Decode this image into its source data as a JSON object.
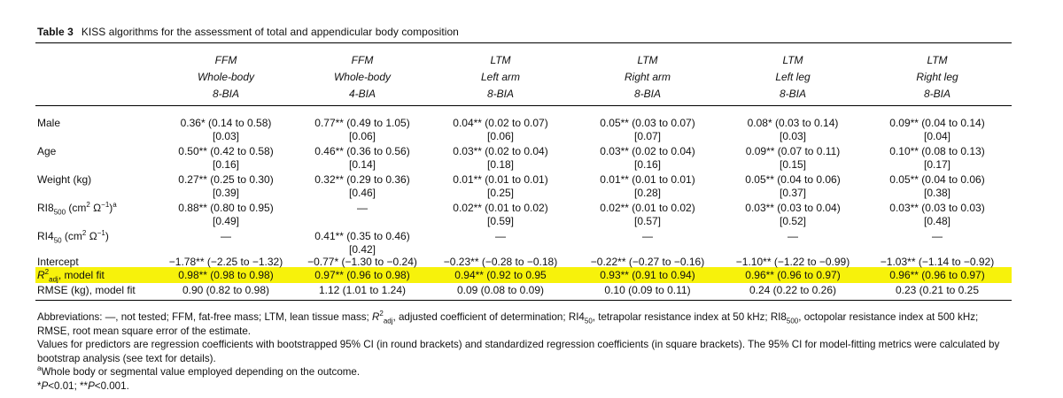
{
  "caption": {
    "number": "Table 3",
    "title": "KISS algorithms for the assessment of total and appendicular body composition"
  },
  "columns": [
    {
      "outcome": "FFM",
      "segment": "Whole-body",
      "method": "8-BIA"
    },
    {
      "outcome": "FFM",
      "segment": "Whole-body",
      "method": "4-BIA"
    },
    {
      "outcome": "LTM",
      "segment": "Left arm",
      "method": "8-BIA"
    },
    {
      "outcome": "LTM",
      "segment": "Right arm",
      "method": "8-BIA"
    },
    {
      "outcome": "LTM",
      "segment": "Left leg",
      "method": "8-BIA"
    },
    {
      "outcome": "LTM",
      "segment": "Right leg",
      "method": "8-BIA"
    }
  ],
  "rows": {
    "male": {
      "label": "Male",
      "cells": [
        {
          "coef": "0.36* (0.14 to 0.58)",
          "std": "[0.03]"
        },
        {
          "coef": "0.77** (0.49 to 1.05)",
          "std": "[0.06]"
        },
        {
          "coef": "0.04** (0.02 to 0.07)",
          "std": "[0.06]"
        },
        {
          "coef": "0.05** (0.03 to 0.07)",
          "std": "[0.07]"
        },
        {
          "coef": "0.08* (0.03 to 0.14)",
          "std": "[0.03]"
        },
        {
          "coef": "0.09** (0.04 to 0.14)",
          "std": "[0.04]"
        }
      ]
    },
    "age": {
      "label": "Age",
      "cells": [
        {
          "coef": "0.50** (0.42 to 0.58)",
          "std": "[0.16]"
        },
        {
          "coef": "0.46** (0.36 to 0.56)",
          "std": "[0.14]"
        },
        {
          "coef": "0.03** (0.02 to 0.04)",
          "std": "[0.18]"
        },
        {
          "coef": "0.03** (0.02 to 0.04)",
          "std": "[0.16]"
        },
        {
          "coef": "0.09** (0.07 to 0.11)",
          "std": "[0.15]"
        },
        {
          "coef": "0.10** (0.08 to 0.13)",
          "std": "[0.17]"
        }
      ]
    },
    "weight": {
      "label": "Weight (kg)",
      "cells": [
        {
          "coef": "0.27** (0.25 to 0.30)",
          "std": "[0.39]"
        },
        {
          "coef": "0.32** (0.29 to 0.36)",
          "std": "[0.46]"
        },
        {
          "coef": "0.01** (0.01 to 0.01)",
          "std": "[0.25]"
        },
        {
          "coef": "0.01** (0.01 to 0.01)",
          "std": "[0.28]"
        },
        {
          "coef": "0.05** (0.04 to 0.06)",
          "std": "[0.37]"
        },
        {
          "coef": "0.05** (0.04 to 0.06)",
          "std": "[0.38]"
        }
      ]
    },
    "ri8": {
      "label_main": "RI8",
      "label_sub": "500",
      "label_unit": " (cm",
      "label_sup1": "2",
      "label_mid": " Ω",
      "label_sup2": "−1",
      "label_end": ")",
      "label_note": "a",
      "cells": [
        {
          "coef": "0.88** (0.80 to 0.95)",
          "std": "[0.49]"
        },
        {
          "coef": "—",
          "std": ""
        },
        {
          "coef": "0.02** (0.01 to 0.02)",
          "std": "[0.59]"
        },
        {
          "coef": "0.02** (0.01 to 0.02)",
          "std": "[0.57]"
        },
        {
          "coef": "0.03** (0.03 to 0.04)",
          "std": "[0.52]"
        },
        {
          "coef": "0.03** (0.03 to 0.03)",
          "std": "[0.48]"
        }
      ]
    },
    "ri4": {
      "label_main": "RI4",
      "label_sub": "50",
      "label_unit": " (cm",
      "label_sup1": "2",
      "label_mid": " Ω",
      "label_sup2": "−1",
      "label_end": ")",
      "cells": [
        {
          "coef": "—",
          "std": ""
        },
        {
          "coef": "0.41** (0.35 to 0.46)",
          "std": "[0.42]"
        },
        {
          "coef": "—",
          "std": ""
        },
        {
          "coef": "—",
          "std": ""
        },
        {
          "coef": "—",
          "std": ""
        },
        {
          "coef": "—",
          "std": ""
        }
      ]
    },
    "intercept": {
      "label": "Intercept",
      "cells": [
        {
          "coef": "−1.78** (−2.25 to −1.32)"
        },
        {
          "coef": "−0.77* (−1.30 to −0.24)"
        },
        {
          "coef": "−0.23** (−0.28 to −0.18)"
        },
        {
          "coef": "−0.22** (−0.27 to −0.16)"
        },
        {
          "coef": "−1.10** (−1.22 to −0.99)"
        },
        {
          "coef": "−1.03** (−1.14 to −0.92)"
        }
      ]
    },
    "r2": {
      "label_r": "R",
      "label_sup": "2",
      "label_sub": "adj",
      "label_rest": ", model fit",
      "cells": [
        {
          "coef": "0.98** (0.98 to 0.98)"
        },
        {
          "coef": "0.97** (0.96 to 0.98)"
        },
        {
          "coef": "0.94** (0.92 to 0.95"
        },
        {
          "coef": "0.93** (0.91 to 0.94)"
        },
        {
          "coef": "0.96** (0.96 to 0.97)"
        },
        {
          "coef": "0.96** (0.96 to 0.97)"
        }
      ]
    },
    "rmse": {
      "label": "RMSE (kg), model fit",
      "cells": [
        {
          "coef": "0.90 (0.82 to 0.98)"
        },
        {
          "coef": "1.12 (1.01 to 1.24)"
        },
        {
          "coef": "0.09 (0.08 to 0.09)"
        },
        {
          "coef": "0.10 (0.09 to 0.11)"
        },
        {
          "coef": "0.24 (0.22 to 0.26)"
        },
        {
          "coef": "0.23 (0.21 to 0.25"
        }
      ]
    }
  },
  "highlight_color": "#f7f20b",
  "notes": {
    "abbr_a": "Abbreviations: —, not tested; FFM, fat-free mass; LTM, lean tissue mass; ",
    "abbr_r": "R",
    "abbr_r_sup": "2",
    "abbr_r_sub": "adj",
    "abbr_b": ", adjusted coefficient of determination; RI4",
    "abbr_b_sub": "50",
    "abbr_c": ", tetrapolar resistance index at 50 kHz; RI8",
    "abbr_c_sub": "500",
    "abbr_d": ", octopolar resistance index at 500 kHz;",
    "abbr_e": "RMSE, root mean square error of the estimate.",
    "values": "Values for predictors are regression coefficients with bootstrapped 95% CI (in round brackets) and standardized regression coefficients (in square brackets). The 95% CI for model-fitting metrics were calculated by bootstrap analysis (see text for details).",
    "footnote_a_mark": "a",
    "footnote_a": "Whole body or segmental value employed depending on the outcome.",
    "sig_1": "*",
    "sig_2": "P",
    "sig_3": "<0.01; **",
    "sig_4": "P",
    "sig_5": "<0.001."
  }
}
